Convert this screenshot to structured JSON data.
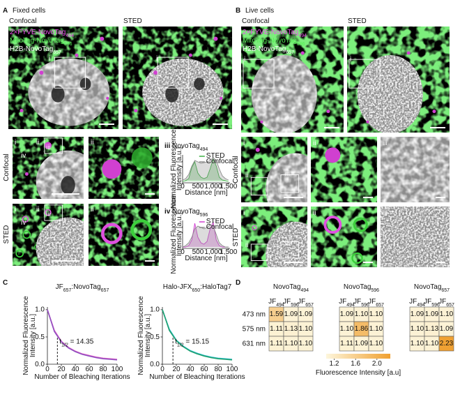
{
  "numerals": [
    "i",
    "ii",
    "iii",
    "iv"
  ],
  "panel_a": {
    "letter": "A",
    "title": "Fixed cells",
    "columns": [
      "Confocal",
      "STED"
    ],
    "rows": [
      "Confocal",
      "STED"
    ],
    "channels": [
      [
        {
          "text": "2×FYVE-NovoTag"
        },
        {
          "sub": "494"
        }
      ],
      [
        {
          "text": "MitoTag-NovoTag"
        },
        {
          "sub": "596"
        }
      ],
      [
        {
          "text": "H2B-NovoTag"
        },
        {
          "sub": "657"
        }
      ]
    ]
  },
  "panel_b": {
    "letter": "B",
    "title": "Live cells",
    "columns": [
      "Confocal",
      "STED"
    ],
    "rows": [
      "Confocal",
      "STED"
    ],
    "channels": [
      [
        {
          "text": "2×FYVE-NovoTag"
        },
        {
          "sub": "494"
        }
      ],
      [
        {
          "text": "MitoTag-NovoTag"
        },
        {
          "sub": "596"
        }
      ],
      [
        {
          "text": "H2B-NovoTag"
        },
        {
          "sub": "657"
        }
      ]
    ]
  },
  "panel_c": {
    "letter": "C"
  },
  "panel_d": {
    "letter": "D",
    "colorbar": {
      "clim": [
        1.05,
        2.25
      ],
      "ticks": [
        1.2,
        1.6,
        {
          "value": 2,
          "label": "2.0"
        }
      ],
      "label": "Fluorescence Intensity [a.u]",
      "colors": [
        "#fdf6dc",
        "#f0a030"
      ]
    }
  },
  "chart_data": [
    {
      "type": "line",
      "title": [
        {
          "numeral": "iii"
        },
        {
          "text": " NovoTag"
        },
        {
          "sub": "494"
        }
      ],
      "x_label": "Distance [nm]",
      "y_label": [
        "Normalized Fluorescence",
        "Intensity [a.u.]"
      ],
      "x": [
        0,
        100,
        200,
        300,
        400,
        500,
        600,
        700,
        800,
        900,
        1000,
        1100,
        1200,
        1300,
        1400,
        1500
      ],
      "xlim": [
        0,
        1550
      ],
      "ylim": [
        0,
        1
      ],
      "xticks": [
        0,
        500,
        {
          "value": 1000,
          "label": "1,000"
        },
        {
          "value": 1500,
          "label": "1,500"
        }
      ],
      "area": true,
      "legend": "top",
      "series": [
        {
          "name": "STED",
          "color": "#3cb043",
          "values": [
            0.05,
            0.08,
            0.15,
            0.55,
            0.75,
            0.35,
            0.2,
            0.15,
            0.2,
            0.5,
            0.85,
            0.6,
            0.2,
            0.1,
            0.08,
            0.05
          ]
        },
        {
          "name": "Confocal",
          "color": "#8a8a8a",
          "values": [
            0.1,
            0.15,
            0.3,
            0.6,
            0.8,
            0.75,
            0.7,
            0.72,
            0.75,
            0.8,
            0.9,
            0.8,
            0.5,
            0.25,
            0.15,
            0.1
          ]
        }
      ]
    },
    {
      "type": "line",
      "title": [
        {
          "numeral": "iv"
        },
        {
          "text": " NovoTag"
        },
        {
          "sub": "596"
        }
      ],
      "x_label": "Distance [nm]",
      "y_label": [
        "Normalized Fluorescence",
        "Intensity [a.u.]"
      ],
      "x": [
        0,
        100,
        200,
        300,
        400,
        500,
        600,
        700,
        800,
        900,
        1000,
        1100,
        1200,
        1300,
        1400,
        1500
      ],
      "xlim": [
        0,
        1550
      ],
      "ylim": [
        0,
        1
      ],
      "xticks": [
        0,
        500,
        {
          "value": 1000,
          "label": "1,000"
        },
        {
          "value": 1500,
          "label": "1,500"
        }
      ],
      "area": true,
      "legend": "top",
      "series": [
        {
          "name": "STED",
          "color": "#d040d0",
          "values": [
            0.05,
            0.05,
            0.1,
            0.3,
            0.9,
            0.4,
            0.2,
            0.15,
            0.25,
            0.7,
            0.95,
            0.3,
            0.1,
            0.05,
            0.05,
            0.05
          ]
        },
        {
          "name": "Confocal",
          "color": "#8a8a8a",
          "values": [
            0.05,
            0.1,
            0.2,
            0.4,
            0.7,
            0.8,
            0.75,
            0.7,
            0.75,
            0.85,
            0.8,
            0.5,
            0.2,
            0.1,
            0.05,
            0.05
          ]
        }
      ]
    },
    {
      "type": "line",
      "title": [
        {
          "text": "JF"
        },
        {
          "sub": "657"
        },
        {
          "text": ":NovoTag"
        },
        {
          "sub": "657"
        }
      ],
      "x_label": "Number of Bleaching Iterations",
      "y_label": [
        "Normalized Fluorescence",
        "Intensity [a.u.]"
      ],
      "x": [
        0,
        10,
        20,
        30,
        40,
        50,
        60,
        70,
        80,
        90,
        100
      ],
      "xlim": [
        0,
        100
      ],
      "ylim": [
        0,
        1.05
      ],
      "xticks": [
        0,
        20,
        40,
        60,
        80,
        100
      ],
      "yticks": [
        {
          "value": 0,
          "label": "0.0"
        },
        {
          "value": 0.5,
          "label": "0.5"
        },
        {
          "value": 1,
          "label": "1.0"
        }
      ],
      "annotation": {
        "label": [
          {
            "text": "t"
          },
          {
            "sub": "1/2"
          },
          {
            "text": " = "
          }
        ],
        "value": 14.35
      },
      "series": [
        {
          "color": "#e060c8",
          "values": [
            1.0,
            0.62,
            0.42,
            0.31,
            0.24,
            0.19,
            0.16,
            0.13,
            0.11,
            0.1,
            0.09
          ]
        },
        {
          "color": "#9050c0",
          "values": [
            1.0,
            0.6,
            0.41,
            0.3,
            0.23,
            0.18,
            0.15,
            0.12,
            0.1,
            0.09,
            0.08
          ]
        }
      ]
    },
    {
      "type": "line",
      "title": [
        {
          "text": "Halo-JFX"
        },
        {
          "sub": "650"
        },
        {
          "text": ":HaloTag7"
        }
      ],
      "x_label": "Number of Bleaching Iterations",
      "y_label": [
        "Normalized Fluorescence",
        "Intensity [a.u.]"
      ],
      "x": [
        0,
        10,
        20,
        30,
        40,
        50,
        60,
        70,
        80,
        90,
        100
      ],
      "xlim": [
        0,
        100
      ],
      "ylim": [
        0,
        1.05
      ],
      "xticks": [
        0,
        20,
        40,
        60,
        80,
        100
      ],
      "yticks": [
        {
          "value": 0,
          "label": "0.0"
        },
        {
          "value": 0.5,
          "label": "0.5"
        },
        {
          "value": 1,
          "label": "1.0"
        }
      ],
      "annotation": {
        "label": [
          {
            "text": "t"
          },
          {
            "sub": "1/2"
          },
          {
            "text": " = "
          }
        ],
        "value": 15.15
      },
      "series": [
        {
          "color": "#30c0d0",
          "values": [
            1.0,
            0.64,
            0.44,
            0.33,
            0.25,
            0.2,
            0.16,
            0.13,
            0.11,
            0.1,
            0.09
          ]
        },
        {
          "color": "#20a070",
          "values": [
            1.0,
            0.62,
            0.43,
            0.32,
            0.24,
            0.19,
            0.15,
            0.12,
            0.1,
            0.09,
            0.08
          ]
        }
      ]
    },
    {
      "type": "heatmap",
      "title": [
        {
          "text": "NovoTag"
        },
        {
          "sub": "494"
        }
      ],
      "x_categories": [
        [
          {
            "text": "JF"
          },
          {
            "sub": "494"
          }
        ],
        [
          {
            "text": "JF"
          },
          {
            "sub": "596"
          }
        ],
        [
          {
            "text": "JF"
          },
          {
            "sub": "657"
          }
        ]
      ],
      "y_categories": [
        "473 nm",
        "575 nm",
        "631 nm"
      ],
      "values": [
        [
          1.59,
          1.09,
          1.09
        ],
        [
          1.11,
          1.13,
          1.1
        ],
        [
          1.11,
          1.1,
          1.1
        ]
      ],
      "value_labels": [
        [
          "1.59",
          "1.09",
          "1.09"
        ],
        [
          "1.11",
          "1.13",
          "1.10"
        ],
        [
          "1.11",
          "1.10",
          "1.10"
        ]
      ]
    },
    {
      "type": "heatmap",
      "title": [
        {
          "text": "NovoTag"
        },
        {
          "sub": "596"
        }
      ],
      "x_categories": [
        [
          {
            "text": "JF"
          },
          {
            "sub": "494"
          }
        ],
        [
          {
            "text": "JF"
          },
          {
            "sub": "596"
          }
        ],
        [
          {
            "text": "JF"
          },
          {
            "sub": "657"
          }
        ]
      ],
      "values": [
        [
          1.09,
          1.1,
          1.1
        ],
        [
          1.1,
          1.86,
          1.1
        ],
        [
          1.11,
          1.09,
          1.1
        ]
      ],
      "value_labels": [
        [
          "1.09",
          "1.10",
          "1.10"
        ],
        [
          "1.10",
          "1.86",
          "1.10"
        ],
        [
          "1.11",
          "1.09",
          "1.10"
        ]
      ]
    },
    {
      "type": "heatmap",
      "title": [
        {
          "text": "NovoTag"
        },
        {
          "sub": "657"
        }
      ],
      "x_categories": [
        [
          {
            "text": "JF"
          },
          {
            "sub": "494"
          }
        ],
        [
          {
            "text": "JF"
          },
          {
            "sub": "596"
          }
        ],
        [
          {
            "text": "JF"
          },
          {
            "sub": "657"
          }
        ]
      ],
      "values": [
        [
          1.09,
          1.09,
          1.1
        ],
        [
          1.1,
          1.13,
          1.09
        ],
        [
          1.1,
          1.1,
          2.23
        ]
      ],
      "value_labels": [
        [
          "1.09",
          "1.09",
          "1.10"
        ],
        [
          "1.10",
          "1.13",
          "1.09"
        ],
        [
          "1.10",
          "1.10",
          "2.23"
        ]
      ]
    }
  ]
}
